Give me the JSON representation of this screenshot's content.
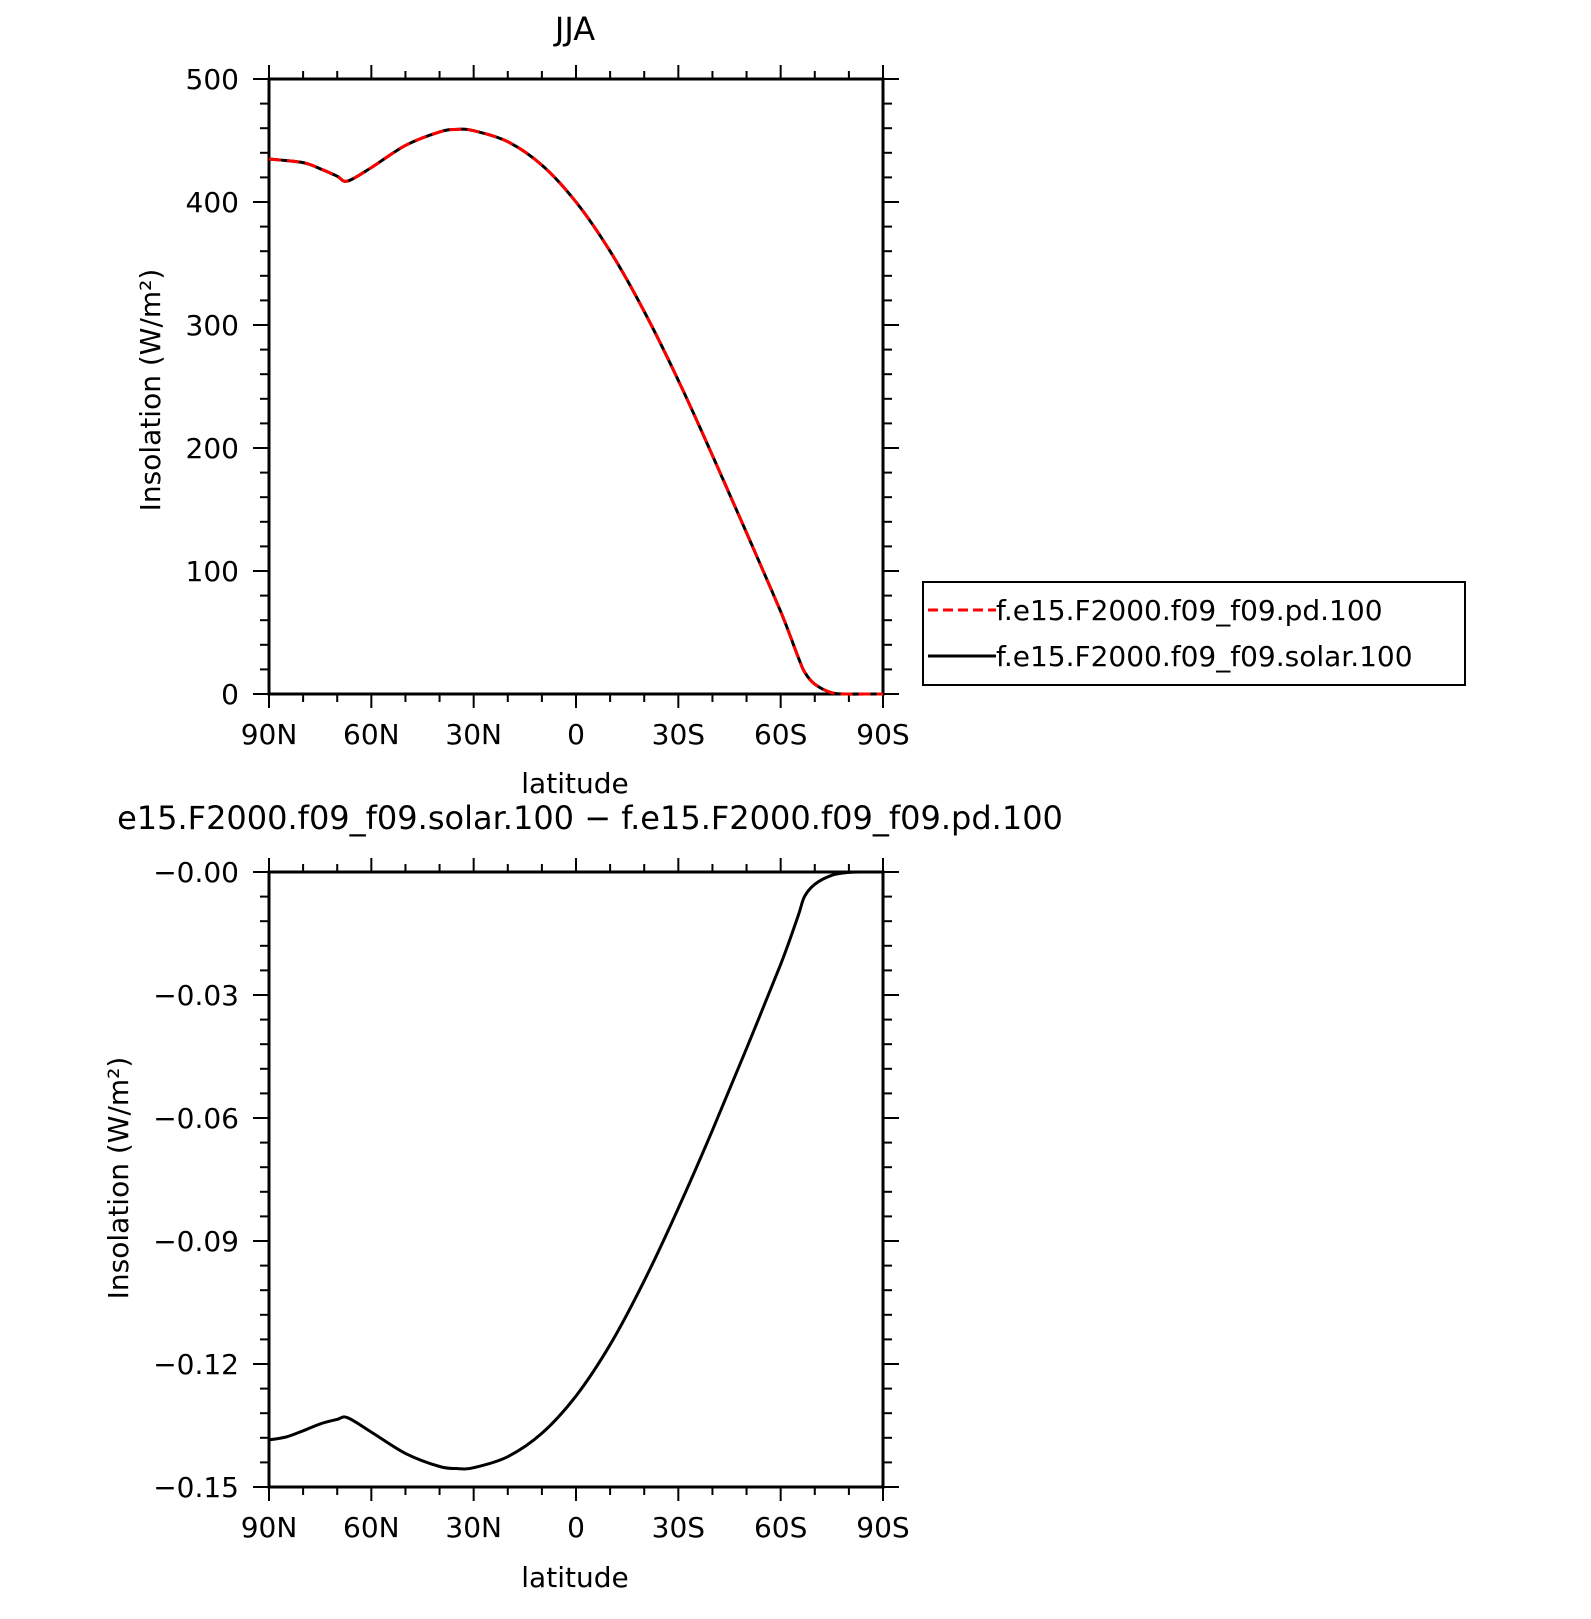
{
  "chart_data": [
    {
      "type": "line",
      "title": "JJA",
      "xlabel": "latitude",
      "ylabel": "Insolation (W/m²)",
      "x_ticks": [
        90,
        60,
        30,
        0,
        -30,
        -60,
        -90
      ],
      "x_tick_labels": [
        "90N",
        "60N",
        "30N",
        "0",
        "30S",
        "60S",
        "90S"
      ],
      "xlim": [
        90,
        -90
      ],
      "ylim": [
        0,
        500
      ],
      "y_ticks": [
        0,
        100,
        200,
        300,
        400,
        500
      ],
      "y_tick_labels": [
        "0",
        "100",
        "200",
        "300",
        "400",
        "500"
      ],
      "grid": false,
      "legend_position": "right",
      "x": [
        90,
        80,
        75,
        70,
        67,
        60,
        50,
        40,
        35,
        30,
        20,
        10,
        0,
        -10,
        -20,
        -30,
        -40,
        -50,
        -60,
        -65,
        -67,
        -70,
        -75,
        -80,
        -85,
        -90
      ],
      "series": [
        {
          "name": "f.e15.F2000.f09_f09.pd.100",
          "color": "#ff0000",
          "style": "dashed",
          "values": [
            435,
            432,
            427,
            421,
            417,
            428,
            446,
            457,
            459,
            458,
            449,
            430,
            400,
            360,
            311,
            255,
            194,
            131,
            67,
            31,
            18,
            8,
            1,
            0,
            0,
            0
          ]
        },
        {
          "name": "f.e15.F2000.f09_f09.solar.100",
          "color": "#000000",
          "style": "solid",
          "values": [
            435,
            432,
            427,
            421,
            417,
            428,
            446,
            457,
            459,
            458,
            449,
            430,
            400,
            360,
            311,
            255,
            194,
            131,
            67,
            31,
            18,
            8,
            1,
            0,
            0,
            0
          ]
        }
      ]
    },
    {
      "type": "line",
      "title": "e15.F2000.f09_f09.solar.100 − f.e15.F2000.f09_f09.pd.100",
      "xlabel": "latitude",
      "ylabel": "Insolation (W/m²)",
      "x_ticks": [
        90,
        60,
        30,
        0,
        -30,
        -60,
        -90
      ],
      "x_tick_labels": [
        "90N",
        "60N",
        "30N",
        "0",
        "30S",
        "60S",
        "90S"
      ],
      "xlim": [
        90,
        -90
      ],
      "ylim": [
        -0.15,
        0
      ],
      "y_ticks": [
        0,
        -0.03,
        -0.06,
        -0.09,
        -0.12,
        -0.15
      ],
      "y_tick_labels": [
        "−0.00",
        "−0.03",
        "−0.06",
        "−0.09",
        "−0.12",
        "−0.15"
      ],
      "grid": false,
      "x": [
        90,
        85,
        80,
        75,
        70,
        67,
        60,
        50,
        40,
        35,
        30,
        20,
        10,
        0,
        -10,
        -20,
        -30,
        -40,
        -50,
        -60,
        -65,
        -67,
        -70,
        -75,
        -80,
        -85,
        -90
      ],
      "series": [
        {
          "color": "#000000",
          "style": "solid",
          "values": [
            -0.1385,
            -0.1378,
            -0.1363,
            -0.1346,
            -0.1335,
            -0.1331,
            -0.1366,
            -0.1418,
            -0.145,
            -0.1455,
            -0.1453,
            -0.1426,
            -0.1369,
            -0.1278,
            -0.1153,
            -0.0997,
            -0.082,
            -0.063,
            -0.043,
            -0.0225,
            -0.011,
            -0.006,
            -0.003,
            -0.0008,
            -0.0001,
            0.0,
            0.0
          ]
        }
      ]
    }
  ]
}
